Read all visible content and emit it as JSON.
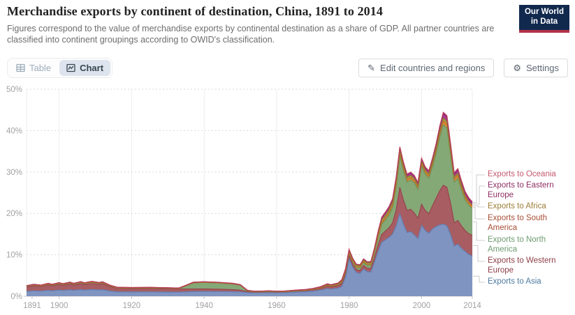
{
  "header": {
    "title": "Merchandise exports by continent of destination, China, 1891 to 2014",
    "subtitle": "Figures correspond to the value of merchandise exports by continental destination as a share of GDP. All partner countries are classified into continent groupings according to OWID's classification.",
    "logo": {
      "line1": "Our World",
      "line2": "in Data",
      "bg": "#12294e",
      "stripe": "#b5314b"
    }
  },
  "toolbar": {
    "table_label": "Table",
    "chart_label": "Chart",
    "edit_label": "Edit countries and regions",
    "settings_label": "Settings"
  },
  "chart_data": {
    "type": "area",
    "stacked": true,
    "unit": "%",
    "x_range": [
      1891,
      2014
    ],
    "y_range": [
      0,
      50
    ],
    "x_ticks": [
      1891,
      1900,
      1920,
      1940,
      1960,
      1980,
      2000,
      2014
    ],
    "y_ticks": [
      0,
      10,
      20,
      30,
      40,
      50
    ],
    "grid": true,
    "legend_position": "right",
    "years": [
      1891,
      1893,
      1895,
      1897,
      1898,
      1900,
      1901,
      1903,
      1904,
      1906,
      1907,
      1909,
      1911,
      1912,
      1914,
      1916,
      1920,
      1925,
      1930,
      1933,
      1935,
      1937,
      1940,
      1944,
      1948,
      1950,
      1952,
      1954,
      1956,
      1958,
      1960,
      1962,
      1965,
      1968,
      1970,
      1972,
      1974,
      1975,
      1977,
      1978,
      1979,
      1980,
      1981,
      1982,
      1983,
      1984,
      1985,
      1986,
      1987,
      1988,
      1989,
      1990,
      1991,
      1992,
      1993,
      1994,
      1995,
      1996,
      1997,
      1998,
      1999,
      2000,
      2001,
      2002,
      2003,
      2004,
      2005,
      2006,
      2007,
      2008,
      2009,
      2010,
      2011,
      2012,
      2013,
      2014
    ],
    "series": [
      {
        "name": "Exports to Asia",
        "fill": "#7f94c0",
        "stroke": "#637eb4",
        "label_color": "#4c7a9f",
        "values": [
          1.15,
          1.3,
          1.22,
          1.42,
          1.3,
          1.5,
          1.38,
          1.55,
          1.42,
          1.6,
          1.48,
          1.62,
          1.5,
          1.58,
          1.25,
          1.05,
          1.02,
          1.05,
          1.0,
          0.98,
          1.05,
          1.12,
          1.15,
          1.12,
          1.08,
          1.02,
          0.88,
          0.8,
          0.84,
          0.88,
          0.82,
          0.85,
          0.98,
          1.08,
          1.22,
          1.45,
          1.85,
          1.72,
          1.95,
          2.35,
          4.6,
          9.0,
          7.0,
          5.7,
          5.5,
          6.55,
          5.95,
          5.85,
          8.2,
          10.8,
          13.0,
          13.6,
          14.2,
          15.0,
          17.0,
          19.9,
          17.4,
          15.4,
          15.6,
          14.8,
          13.9,
          17.1,
          15.9,
          15.2,
          16.2,
          16.8,
          17.2,
          17.4,
          17.0,
          14.9,
          12.1,
          12.6,
          11.6,
          10.8,
          10.1,
          9.7
        ]
      },
      {
        "name": "Exports to Western Europe",
        "fill": "#a85d62",
        "stroke": "#97434d",
        "label_color": "#8d3e47",
        "values": [
          1.05,
          1.2,
          1.1,
          1.28,
          1.18,
          1.33,
          1.22,
          1.38,
          1.26,
          1.42,
          1.3,
          1.45,
          1.32,
          1.4,
          1.05,
          0.82,
          0.78,
          0.8,
          0.76,
          0.72,
          0.68,
          0.62,
          0.6,
          0.56,
          0.5,
          0.45,
          0.22,
          0.16,
          0.17,
          0.18,
          0.16,
          0.18,
          0.24,
          0.29,
          0.34,
          0.42,
          0.55,
          0.52,
          0.6,
          0.75,
          0.75,
          0.8,
          0.75,
          0.7,
          0.72,
          0.85,
          0.8,
          0.85,
          1.1,
          1.5,
          1.9,
          2.1,
          2.3,
          2.7,
          3.9,
          6.4,
          5.8,
          5.3,
          5.4,
          5.3,
          4.9,
          5.1,
          4.8,
          4.7,
          5.6,
          6.8,
          8.2,
          9.4,
          9.3,
          7.6,
          5.6,
          5.7,
          5.4,
          5.1,
          5.0,
          5.0
        ]
      },
      {
        "name": "Exports to North America",
        "fill": "#85a877",
        "stroke": "#6d9459",
        "label_color": "#6e9b70",
        "values": [
          0.15,
          0.18,
          0.16,
          0.2,
          0.18,
          0.22,
          0.2,
          0.24,
          0.21,
          0.26,
          0.22,
          0.28,
          0.24,
          0.26,
          0.18,
          0.14,
          0.14,
          0.15,
          0.14,
          0.14,
          0.75,
          1.45,
          1.55,
          1.48,
          1.35,
          1.15,
          0.12,
          0.06,
          0.05,
          0.05,
          0.04,
          0.04,
          0.05,
          0.06,
          0.08,
          0.11,
          0.2,
          0.18,
          0.22,
          0.32,
          0.45,
          0.55,
          0.55,
          0.55,
          0.6,
          0.75,
          0.72,
          0.8,
          1.2,
          1.8,
          2.4,
          2.7,
          3.1,
          3.7,
          5.5,
          7.6,
          7.2,
          6.9,
          7.1,
          7.3,
          7.0,
          9.3,
          8.8,
          8.6,
          9.4,
          10.8,
          12.9,
          14.6,
          14.3,
          11.6,
          9.8,
          10.1,
          8.7,
          7.4,
          6.9,
          6.5
        ]
      },
      {
        "name": "Exports to South America",
        "fill": "#dd8a39",
        "stroke": "#c46f28",
        "label_color": "#a84e35",
        "values": [
          0.04,
          0.04,
          0.04,
          0.05,
          0.05,
          0.05,
          0.05,
          0.05,
          0.05,
          0.05,
          0.05,
          0.05,
          0.05,
          0.05,
          0.04,
          0.03,
          0.03,
          0.03,
          0.03,
          0.03,
          0.04,
          0.05,
          0.05,
          0.05,
          0.04,
          0.04,
          0.02,
          0.02,
          0.02,
          0.02,
          0.02,
          0.02,
          0.03,
          0.03,
          0.04,
          0.05,
          0.08,
          0.07,
          0.09,
          0.12,
          0.16,
          0.2,
          0.18,
          0.16,
          0.16,
          0.18,
          0.18,
          0.2,
          0.28,
          0.35,
          0.42,
          0.45,
          0.48,
          0.52,
          0.62,
          0.65,
          0.6,
          0.55,
          0.55,
          0.52,
          0.5,
          0.55,
          0.52,
          0.55,
          0.62,
          0.7,
          0.8,
          0.9,
          0.9,
          0.85,
          0.7,
          0.75,
          0.72,
          0.65,
          0.6,
          0.55
        ]
      },
      {
        "name": "Exports to Africa",
        "fill": "#a89a47",
        "stroke": "#8c7c2f",
        "label_color": "#9c7d34",
        "values": [
          0.1,
          0.1,
          0.1,
          0.11,
          0.11,
          0.12,
          0.12,
          0.12,
          0.12,
          0.13,
          0.13,
          0.13,
          0.13,
          0.13,
          0.1,
          0.08,
          0.08,
          0.08,
          0.08,
          0.07,
          0.08,
          0.09,
          0.09,
          0.08,
          0.08,
          0.07,
          0.05,
          0.05,
          0.05,
          0.05,
          0.05,
          0.06,
          0.08,
          0.09,
          0.11,
          0.13,
          0.18,
          0.16,
          0.19,
          0.26,
          0.35,
          0.45,
          0.42,
          0.38,
          0.36,
          0.4,
          0.38,
          0.4,
          0.5,
          0.6,
          0.68,
          0.7,
          0.72,
          0.75,
          0.8,
          0.65,
          0.6,
          0.55,
          0.55,
          0.52,
          0.5,
          0.52,
          0.5,
          0.5,
          0.58,
          0.62,
          0.7,
          0.75,
          0.75,
          0.7,
          0.55,
          0.55,
          0.5,
          0.4,
          0.32,
          0.25
        ]
      },
      {
        "name": "Exports to Eastern Europe",
        "fill": "#ab3a92",
        "stroke": "#8e2579",
        "label_color": "#8e2e63",
        "values": [
          0.04,
          0.04,
          0.04,
          0.04,
          0.04,
          0.04,
          0.04,
          0.04,
          0.04,
          0.04,
          0.04,
          0.04,
          0.04,
          0.04,
          0.03,
          0.03,
          0.03,
          0.03,
          0.03,
          0.03,
          0.03,
          0.04,
          0.04,
          0.04,
          0.04,
          0.04,
          0.1,
          0.1,
          0.1,
          0.11,
          0.1,
          0.08,
          0.07,
          0.06,
          0.06,
          0.07,
          0.1,
          0.09,
          0.11,
          0.16,
          0.22,
          0.25,
          0.23,
          0.2,
          0.2,
          0.22,
          0.22,
          0.23,
          0.32,
          0.45,
          0.55,
          0.6,
          0.65,
          0.72,
          0.85,
          0.7,
          0.65,
          0.6,
          0.6,
          0.55,
          0.52,
          0.58,
          0.55,
          0.58,
          0.7,
          0.8,
          0.95,
          1.05,
          1.05,
          0.95,
          0.8,
          0.85,
          0.8,
          0.7,
          0.6,
          0.5
        ]
      },
      {
        "name": "Exports to Oceania",
        "fill": "#ce5b74",
        "stroke": "#bc3e58",
        "label_color": "#c4596f",
        "values": [
          0.03,
          0.03,
          0.03,
          0.03,
          0.03,
          0.03,
          0.03,
          0.03,
          0.03,
          0.03,
          0.03,
          0.03,
          0.03,
          0.03,
          0.03,
          0.02,
          0.02,
          0.02,
          0.02,
          0.02,
          0.03,
          0.03,
          0.03,
          0.03,
          0.03,
          0.03,
          0.02,
          0.02,
          0.02,
          0.02,
          0.02,
          0.02,
          0.02,
          0.03,
          0.03,
          0.04,
          0.05,
          0.05,
          0.06,
          0.07,
          0.08,
          0.08,
          0.07,
          0.06,
          0.06,
          0.07,
          0.07,
          0.07,
          0.1,
          0.12,
          0.14,
          0.15,
          0.16,
          0.18,
          0.22,
          0.2,
          0.18,
          0.17,
          0.17,
          0.16,
          0.15,
          0.18,
          0.17,
          0.17,
          0.22,
          0.26,
          0.3,
          0.32,
          0.32,
          0.3,
          0.25,
          0.26,
          0.25,
          0.28,
          0.3,
          0.3
        ]
      }
    ]
  }
}
